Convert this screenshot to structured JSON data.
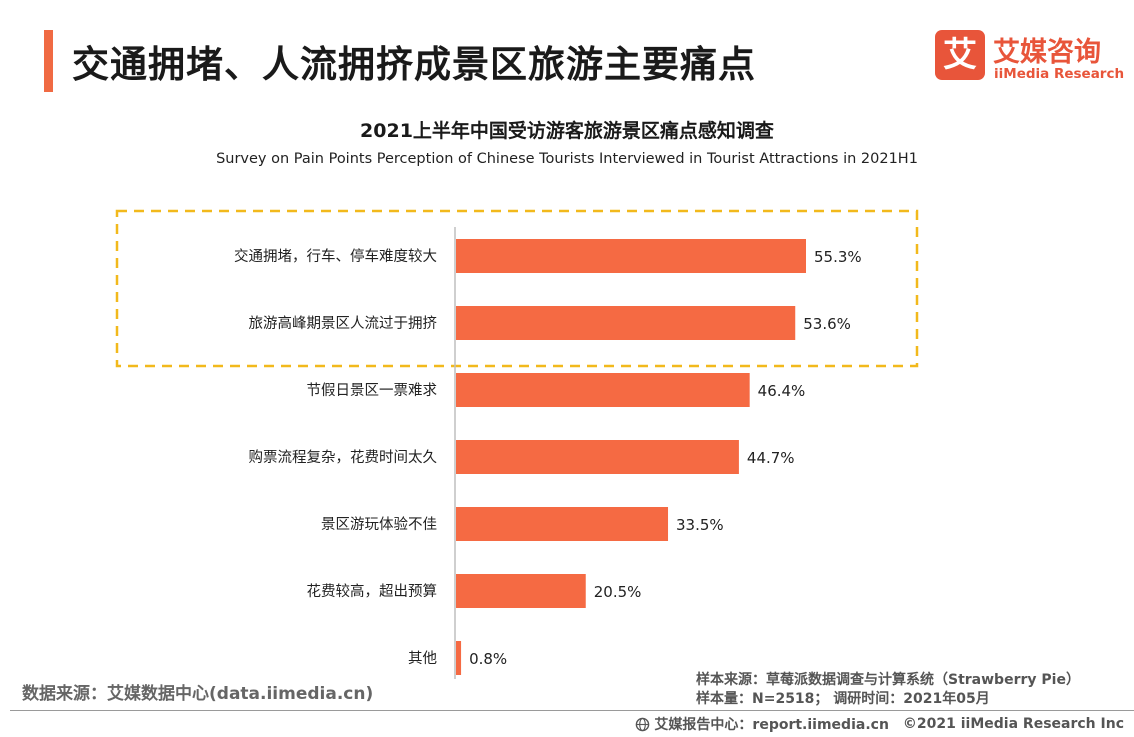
{
  "header": {
    "title": "交通拥堵、人流拥挤成景区旅游主要痛点"
  },
  "logo": {
    "mark": "艾",
    "name_cn": "艾媒咨询",
    "name_en": "iiMedia Research"
  },
  "chart_data": {
    "type": "bar",
    "orientation": "horizontal",
    "title": "2021上半年中国受访游客旅游景区痛点感知调查",
    "subtitle": "Survey on Pain Points Perception of Chinese Tourists Interviewed in Tourist Attractions  in 2021H1",
    "categories": [
      "交通拥堵，行车、停车难度较大",
      "旅游高峰期景区人流过于拥挤",
      "节假日景区一票难求",
      "购票流程复杂，花费时间太久",
      "景区游玩体验不佳",
      "花费较高，超出预算",
      "其他"
    ],
    "values": [
      55.3,
      53.6,
      46.4,
      44.7,
      33.5,
      20.5,
      0.8
    ],
    "value_labels": [
      "55.3%",
      "53.6%",
      "46.4%",
      "44.7%",
      "33.5%",
      "20.5%",
      "0.8%"
    ],
    "unit": "%",
    "highlighted_categories": [
      0,
      1
    ],
    "bar_color": "#f56a43",
    "highlight_box_color": "#f2b91c",
    "xlim": [
      0,
      100
    ],
    "grid": false,
    "legend": "none"
  },
  "footer": {
    "data_source": "数据来源：艾媒数据中心(data.iimedia.cn)",
    "sample_source": "样本来源：草莓派数据调查与计算系统（Strawberry Pie）",
    "sample_size": "样本量：N=2518；  调研时间：2021年05月",
    "report_center": "艾媒报告中心：report.iimedia.cn",
    "copyright": "©2021  iiMedia Research  Inc"
  }
}
